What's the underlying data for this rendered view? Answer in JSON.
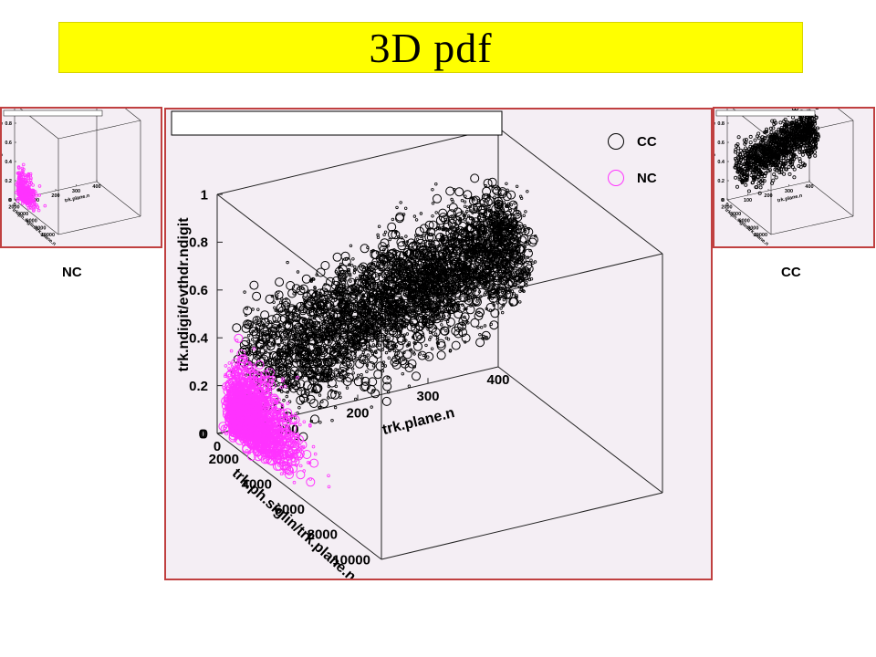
{
  "title": "3D pdf",
  "side_labels": {
    "left": "NC",
    "right": "CC"
  },
  "legend": [
    {
      "label": "CC",
      "color": "#000000"
    },
    {
      "label": "NC",
      "color": "#ff33ff"
    }
  ],
  "colors": {
    "banner": "#ffff00",
    "panel_border": "#c04040",
    "panel_bg": "#f4eef4",
    "cc": "#000000",
    "nc": "#ff33ff"
  },
  "chart_data": [
    {
      "type": "scatter",
      "panel": "main",
      "title": "",
      "xlabel": "trk.plane.n",
      "ylabel": "trk.ph.siglin/trk.plane.n",
      "zlabel": "trk.ndigit/evthdr.ndigit",
      "xlim": [
        0,
        400
      ],
      "ylim": [
        0,
        10000
      ],
      "zlim": [
        0,
        1
      ],
      "x_ticks": [
        "0",
        "100",
        "200",
        "300",
        "400"
      ],
      "y_ticks": [
        "0",
        "2000",
        "4000",
        "6000",
        "8000",
        "10000"
      ],
      "z_ticks": [
        "0",
        "0.2",
        "0.4",
        "0.6",
        "0.8",
        "1"
      ],
      "series": [
        {
          "name": "CC",
          "color": "#000000",
          "marker": "open-circle",
          "x_range": [
            10,
            400
          ],
          "y_range": [
            0,
            4000
          ],
          "z_range": [
            0.15,
            0.8
          ]
        },
        {
          "name": "NC",
          "color": "#ff33ff",
          "marker": "open-circle",
          "x_range": [
            0,
            40
          ],
          "y_range": [
            0,
            6000
          ],
          "z_range": [
            0,
            0.6
          ]
        }
      ]
    },
    {
      "type": "scatter",
      "panel": "left-thumbnail",
      "xlabel": "trk.plane.n",
      "ylabel": "trk.ph.siglin/trk.plane.n",
      "zlabel": "trk.ndigit/evthdr.ndigit",
      "x_ticks": [
        "0",
        "100",
        "200",
        "300",
        "400"
      ],
      "y_ticks": [
        "0",
        "2000",
        "4000",
        "6000",
        "8000",
        "10000"
      ],
      "z_ticks": [
        "0",
        "0.2",
        "0.4",
        "0.6",
        "0.8",
        "1"
      ],
      "series": [
        {
          "name": "NC",
          "color": "#ff33ff"
        }
      ]
    },
    {
      "type": "scatter",
      "panel": "right-thumbnail",
      "xlabel": "trk.plane.n",
      "ylabel": "trk.ph.siglin/trk.plane.n",
      "zlabel": "trk.ndigit/evthdr.ndigit",
      "x_ticks": [
        "0",
        "100",
        "200",
        "300",
        "400"
      ],
      "y_ticks": [
        "0",
        "2000",
        "4000",
        "6000",
        "8000",
        "10000"
      ],
      "z_ticks": [
        "0",
        "0.2",
        "0.4",
        "0.6",
        "0.8",
        "1"
      ],
      "series": [
        {
          "name": "CC",
          "color": "#000000"
        }
      ]
    }
  ]
}
